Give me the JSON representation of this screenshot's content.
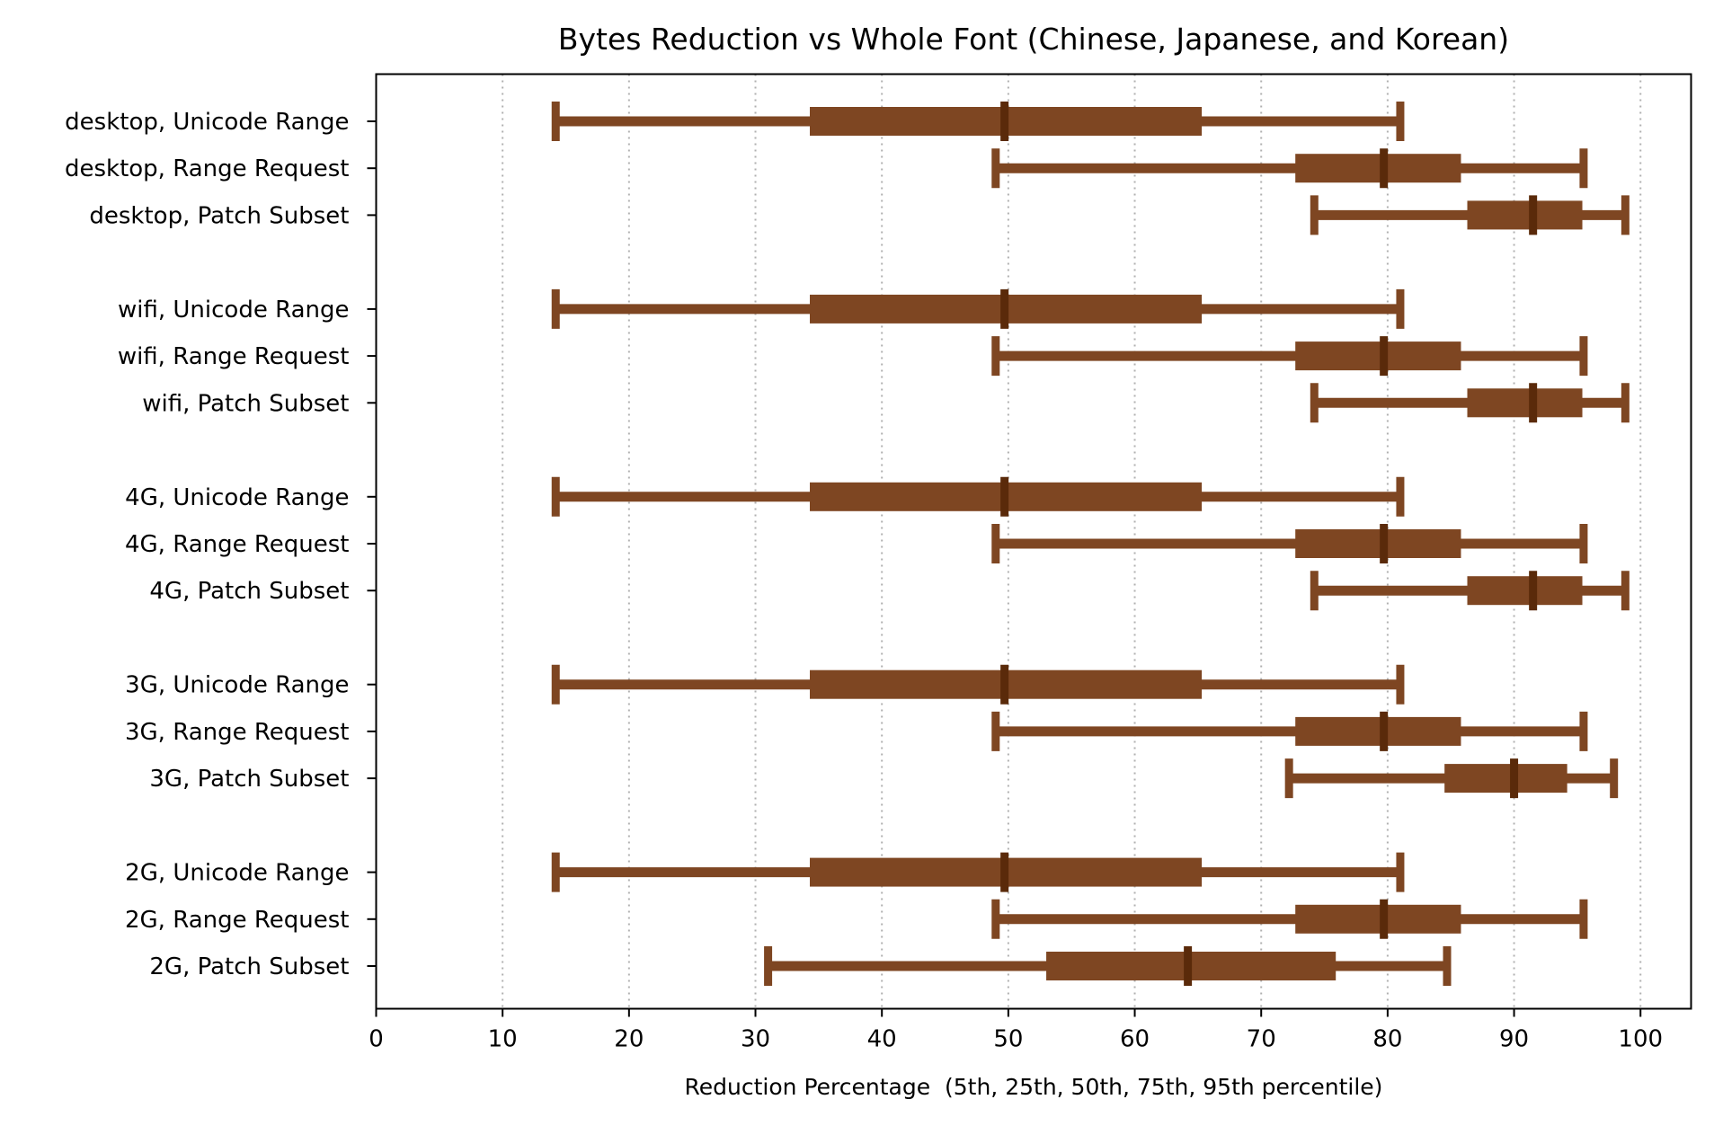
{
  "chart_data": {
    "type": "box",
    "title": "Bytes Reduction vs Whole Font (Chinese, Japanese, and Korean)",
    "xlabel": "Reduction Percentage  (5th, 25th, 50th, 75th, 95th percentile)",
    "ylabel": "",
    "xlim": [
      0,
      104
    ],
    "xticks": [
      0,
      10,
      20,
      30,
      40,
      50,
      60,
      70,
      80,
      90,
      100
    ],
    "grid": "x, dotted",
    "color": "#7e4622",
    "median_color": "#5a2a0a",
    "groups": [
      {
        "name": "desktop",
        "rows": [
          {
            "label": "desktop, Unicode Range",
            "p5": 14.2,
            "p25": 34.3,
            "p50": 49.7,
            "p75": 65.3,
            "p95": 81.0
          },
          {
            "label": "desktop, Range Request",
            "p5": 49.0,
            "p25": 72.7,
            "p50": 79.7,
            "p75": 85.8,
            "p95": 95.5
          },
          {
            "label": "desktop, Patch Subset",
            "p5": 74.2,
            "p25": 86.3,
            "p50": 91.5,
            "p75": 95.4,
            "p95": 98.8
          }
        ]
      },
      {
        "name": "wifi",
        "rows": [
          {
            "label": "wifi, Unicode Range",
            "p5": 14.2,
            "p25": 34.3,
            "p50": 49.7,
            "p75": 65.3,
            "p95": 81.0
          },
          {
            "label": "wifi, Range Request",
            "p5": 49.0,
            "p25": 72.7,
            "p50": 79.7,
            "p75": 85.8,
            "p95": 95.5
          },
          {
            "label": "wifi, Patch Subset",
            "p5": 74.2,
            "p25": 86.3,
            "p50": 91.5,
            "p75": 95.4,
            "p95": 98.8
          }
        ]
      },
      {
        "name": "4G",
        "rows": [
          {
            "label": "4G, Unicode Range",
            "p5": 14.2,
            "p25": 34.3,
            "p50": 49.7,
            "p75": 65.3,
            "p95": 81.0
          },
          {
            "label": "4G, Range Request",
            "p5": 49.0,
            "p25": 72.7,
            "p50": 79.7,
            "p75": 85.8,
            "p95": 95.5
          },
          {
            "label": "4G, Patch Subset",
            "p5": 74.2,
            "p25": 86.3,
            "p50": 91.5,
            "p75": 95.4,
            "p95": 98.8
          }
        ]
      },
      {
        "name": "3G",
        "rows": [
          {
            "label": "3G, Unicode Range",
            "p5": 14.2,
            "p25": 34.3,
            "p50": 49.7,
            "p75": 65.3,
            "p95": 81.0
          },
          {
            "label": "3G, Range Request",
            "p5": 49.0,
            "p25": 72.7,
            "p50": 79.7,
            "p75": 85.8,
            "p95": 95.5
          },
          {
            "label": "3G, Patch Subset",
            "p5": 72.2,
            "p25": 84.5,
            "p50": 90.0,
            "p75": 94.2,
            "p95": 97.9
          }
        ]
      },
      {
        "name": "2G",
        "rows": [
          {
            "label": "2G, Unicode Range",
            "p5": 14.2,
            "p25": 34.3,
            "p50": 49.7,
            "p75": 65.3,
            "p95": 81.0
          },
          {
            "label": "2G, Range Request",
            "p5": 49.0,
            "p25": 72.7,
            "p50": 79.7,
            "p75": 85.8,
            "p95": 95.5
          },
          {
            "label": "2G, Patch Subset",
            "p5": 31.0,
            "p25": 53.0,
            "p50": 64.2,
            "p75": 75.9,
            "p95": 84.7
          }
        ]
      }
    ]
  }
}
